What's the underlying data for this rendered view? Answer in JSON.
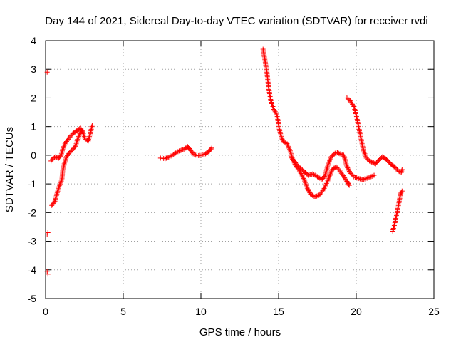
{
  "chart_data": {
    "type": "scatter",
    "title": "Day 144 of 2021, Sidereal Day-to-day VTEC variation (SDTVAR) for receiver rvdi",
    "xlabel": "GPS time / hours",
    "ylabel": "SDTVAR / TECUs",
    "xlim": [
      0,
      25
    ],
    "ylim": [
      -5,
      4
    ],
    "xticks": [
      0,
      5,
      10,
      15,
      20,
      25
    ],
    "yticks": [
      -5,
      -4,
      -3,
      -2,
      -1,
      0,
      1,
      2,
      3,
      4
    ],
    "grid": true,
    "marker": "plus",
    "color": "#ff0000",
    "series": [
      {
        "name": "outliers",
        "points": [
          [
            0.1,
            2.9
          ],
          [
            0.15,
            -2.7
          ],
          [
            0.1,
            -2.75
          ],
          [
            0.1,
            -4.05
          ],
          [
            0.15,
            -4.15
          ]
        ]
      },
      {
        "name": "arc-1",
        "points": [
          [
            0.4,
            -1.75
          ],
          [
            0.6,
            -1.6
          ],
          [
            0.75,
            -1.3
          ],
          [
            0.9,
            -1.05
          ],
          [
            1.05,
            -0.85
          ],
          [
            1.1,
            -0.55
          ],
          [
            1.2,
            -0.3
          ],
          [
            1.35,
            -0.05
          ],
          [
            1.55,
            0.1
          ],
          [
            1.75,
            0.2
          ],
          [
            1.95,
            0.35
          ],
          [
            2.05,
            0.55
          ],
          [
            2.2,
            0.75
          ],
          [
            2.35,
            0.85
          ]
        ]
      },
      {
        "name": "arc-2",
        "points": [
          [
            0.35,
            -0.2
          ],
          [
            0.5,
            -0.1
          ],
          [
            0.65,
            -0.05
          ],
          [
            0.85,
            -0.1
          ],
          [
            1.0,
            0.0
          ],
          [
            1.1,
            0.2
          ],
          [
            1.25,
            0.4
          ],
          [
            1.5,
            0.6
          ],
          [
            1.75,
            0.75
          ],
          [
            2.0,
            0.85
          ],
          [
            2.25,
            0.95
          ],
          [
            2.4,
            0.8
          ],
          [
            2.55,
            0.55
          ],
          [
            2.75,
            0.5
          ],
          [
            2.9,
            0.8
          ],
          [
            3.0,
            1.05
          ]
        ]
      },
      {
        "name": "arc-3",
        "points": [
          [
            7.4,
            -0.1
          ],
          [
            7.7,
            -0.12
          ],
          [
            8.0,
            -0.05
          ],
          [
            8.3,
            0.05
          ],
          [
            8.6,
            0.15
          ],
          [
            8.9,
            0.2
          ],
          [
            9.15,
            0.3
          ],
          [
            9.3,
            0.2
          ],
          [
            9.5,
            0.05
          ],
          [
            9.75,
            -0.02
          ],
          [
            10.05,
            0.0
          ],
          [
            10.3,
            0.05
          ],
          [
            10.55,
            0.15
          ],
          [
            10.7,
            0.25
          ]
        ]
      },
      {
        "name": "arc-4",
        "points": [
          [
            14.0,
            3.7
          ],
          [
            14.1,
            3.4
          ],
          [
            14.25,
            2.9
          ],
          [
            14.35,
            2.4
          ],
          [
            14.5,
            1.9
          ],
          [
            14.7,
            1.6
          ],
          [
            14.9,
            1.4
          ],
          [
            15.05,
            0.9
          ],
          [
            15.2,
            0.6
          ],
          [
            15.35,
            0.45
          ],
          [
            15.55,
            0.4
          ],
          [
            15.75,
            0.15
          ],
          [
            15.9,
            -0.15
          ],
          [
            16.1,
            -0.35
          ],
          [
            16.35,
            -0.55
          ],
          [
            16.65,
            -0.85
          ],
          [
            16.85,
            -1.15
          ],
          [
            17.05,
            -1.35
          ],
          [
            17.3,
            -1.45
          ],
          [
            17.6,
            -1.4
          ],
          [
            17.9,
            -1.2
          ],
          [
            18.2,
            -0.85
          ],
          [
            18.45,
            -0.5
          ],
          [
            18.7,
            -0.4
          ],
          [
            18.95,
            -0.55
          ],
          [
            19.2,
            -0.75
          ],
          [
            19.45,
            -0.95
          ],
          [
            19.55,
            -1.05
          ]
        ]
      },
      {
        "name": "arc-5",
        "points": [
          [
            15.8,
            -0.05
          ],
          [
            16.2,
            -0.35
          ],
          [
            16.6,
            -0.55
          ],
          [
            16.9,
            -0.7
          ],
          [
            17.2,
            -0.65
          ],
          [
            17.5,
            -0.75
          ],
          [
            17.8,
            -0.85
          ],
          [
            18.0,
            -0.7
          ],
          [
            18.2,
            -0.3
          ],
          [
            18.4,
            -0.05
          ],
          [
            18.7,
            0.1
          ],
          [
            18.95,
            0.05
          ],
          [
            19.2,
            0.0
          ],
          [
            19.4,
            -0.4
          ],
          [
            19.6,
            -0.6
          ],
          [
            19.85,
            -0.75
          ],
          [
            20.1,
            -0.8
          ],
          [
            20.4,
            -0.85
          ],
          [
            20.7,
            -0.8
          ],
          [
            20.95,
            -0.75
          ],
          [
            21.15,
            -0.7
          ]
        ]
      },
      {
        "name": "arc-6",
        "points": [
          [
            19.4,
            2.0
          ],
          [
            19.6,
            1.9
          ],
          [
            19.85,
            1.7
          ],
          [
            20.0,
            1.4
          ],
          [
            20.15,
            1.0
          ],
          [
            20.3,
            0.6
          ],
          [
            20.45,
            0.2
          ],
          [
            20.65,
            -0.1
          ],
          [
            20.85,
            -0.2
          ],
          [
            21.05,
            -0.25
          ],
          [
            21.25,
            -0.3
          ],
          [
            21.5,
            -0.15
          ],
          [
            21.7,
            -0.05
          ],
          [
            21.95,
            -0.15
          ],
          [
            22.2,
            -0.3
          ],
          [
            22.45,
            -0.4
          ],
          [
            22.7,
            -0.55
          ],
          [
            22.9,
            -0.6
          ],
          [
            22.95,
            -0.5
          ]
        ]
      },
      {
        "name": "arc-7",
        "points": [
          [
            22.35,
            -2.65
          ],
          [
            22.45,
            -2.45
          ],
          [
            22.55,
            -2.2
          ],
          [
            22.65,
            -1.95
          ],
          [
            22.75,
            -1.65
          ],
          [
            22.85,
            -1.35
          ],
          [
            22.95,
            -1.25
          ]
        ]
      }
    ]
  }
}
